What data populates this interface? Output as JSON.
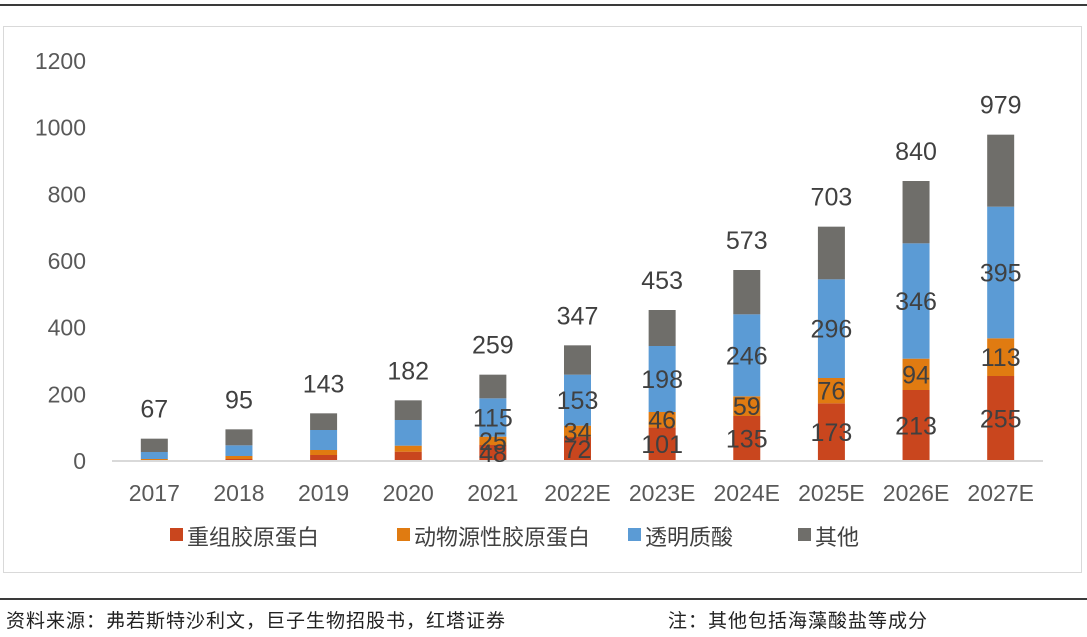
{
  "chart_data": {
    "type": "bar",
    "stacked": true,
    "title": "",
    "xlabel": "",
    "ylabel": "",
    "ylim": [
      0,
      1200
    ],
    "yticks": [
      0,
      200,
      400,
      600,
      800,
      1000,
      1200
    ],
    "grid": false,
    "legend_position": "bottom",
    "categories": [
      "2017",
      "2018",
      "2019",
      "2020",
      "2021",
      "2022E",
      "2023E",
      "2024E",
      "2025E",
      "2026E",
      "2027E"
    ],
    "series": [
      {
        "name": "重组胶原蛋白",
        "color": "#C9461E",
        "values": [
          2,
          6,
          18,
          28,
          48,
          72,
          101,
          135,
          173,
          213,
          255
        ],
        "labeled_from_index": 4
      },
      {
        "name": "动物源性胶原蛋白",
        "color": "#E07B11",
        "values": [
          4,
          9,
          15,
          18,
          25,
          34,
          46,
          59,
          76,
          94,
          113
        ],
        "labeled_from_index": 4
      },
      {
        "name": "透明质酸",
        "color": "#5B9BD5",
        "values": [
          21,
          32,
          60,
          77,
          115,
          153,
          198,
          246,
          296,
          346,
          395
        ],
        "labeled_from_index": 4
      },
      {
        "name": "其他",
        "color": "#6F6E6A",
        "values": [
          40,
          48,
          50,
          59,
          71,
          88,
          108,
          133,
          158,
          187,
          216
        ],
        "labeled_from_index": 99
      }
    ],
    "totals": [
      67,
      95,
      143,
      182,
      259,
      347,
      453,
      573,
      703,
      840,
      979
    ]
  },
  "footer": {
    "source": "资料来源：弗若斯特沙利文，巨子生物招股书，红塔证券",
    "note": "注：其他包括海藻酸盐等成分"
  }
}
